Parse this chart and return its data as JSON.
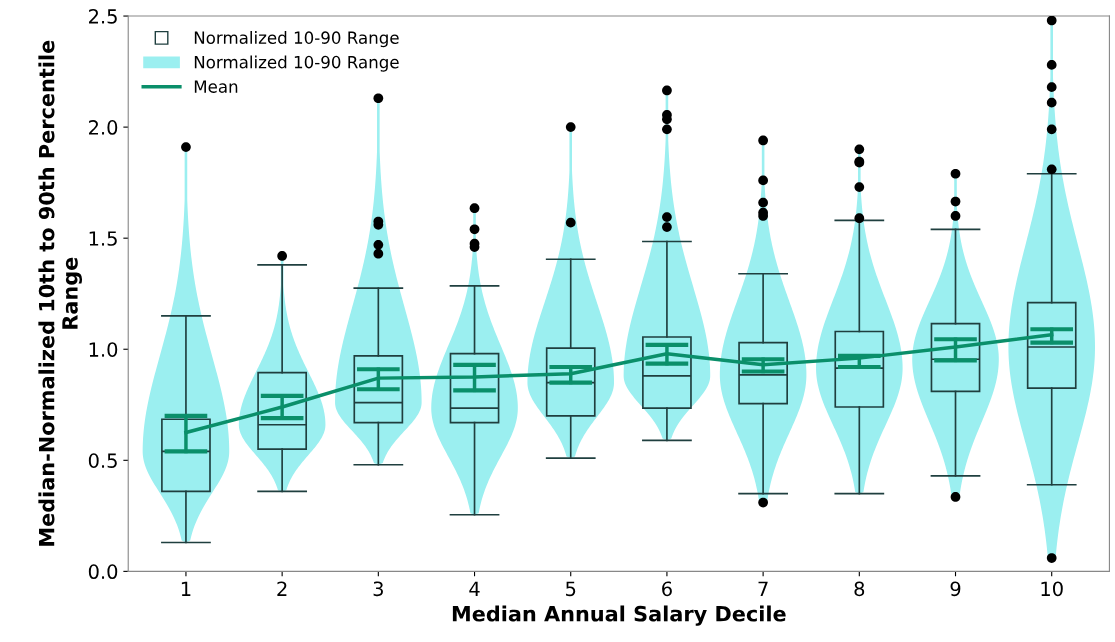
{
  "chart_data": {
    "type": "box",
    "xlabel": "Median Annual Salary Decile",
    "ylabel": "Median-Normalized 10th to 90th Percentile\nRange",
    "categories": [
      "1",
      "2",
      "3",
      "4",
      "5",
      "6",
      "7",
      "8",
      "9",
      "10"
    ],
    "ylim": [
      0,
      2.5
    ],
    "yticks": [
      {
        "value": 0,
        "label": "0.0"
      },
      {
        "value": 0.5,
        "label": "0.5"
      },
      {
        "value": 1.0,
        "label": "1.0"
      },
      {
        "value": 1.5,
        "label": "1.5"
      },
      {
        "value": 2.0,
        "label": "2.0"
      },
      {
        "value": 2.5,
        "label": "2.5"
      }
    ],
    "grid": false,
    "legend": "top left",
    "series": [
      {
        "name": "Normalized 10-90 Range",
        "color": "#1f3f3f",
        "boxes": [
          {
            "low": 0.13,
            "q1": 0.36,
            "median": 0.54,
            "q3": 0.685,
            "high": 1.15,
            "outliers": [
              1.91
            ]
          },
          {
            "low": 0.36,
            "q1": 0.55,
            "median": 0.66,
            "q3": 0.895,
            "high": 1.38,
            "outliers": [
              1.42
            ]
          },
          {
            "low": 0.48,
            "q1": 0.67,
            "median": 0.76,
            "q3": 0.97,
            "high": 1.275,
            "outliers": [
              2.13,
              1.575,
              1.56,
              1.47,
              1.43
            ]
          },
          {
            "low": 0.255,
            "q1": 0.67,
            "median": 0.735,
            "q3": 0.98,
            "high": 1.285,
            "outliers": [
              1.635,
              1.54,
              1.475,
              1.46
            ]
          },
          {
            "low": 0.51,
            "q1": 0.7,
            "median": 0.85,
            "q3": 1.005,
            "high": 1.405,
            "outliers": [
              2.0,
              1.57
            ]
          },
          {
            "low": 0.59,
            "q1": 0.735,
            "median": 0.88,
            "q3": 1.055,
            "high": 1.485,
            "outliers": [
              2.165,
              2.055,
              2.035,
              1.99,
              1.595,
              1.55
            ]
          },
          {
            "low": 0.35,
            "q1": 0.755,
            "median": 0.885,
            "q3": 1.03,
            "high": 1.34,
            "outliers": [
              1.94,
              1.76,
              1.66,
              1.615,
              1.6,
              0.31
            ]
          },
          {
            "low": 0.35,
            "q1": 0.74,
            "median": 0.915,
            "q3": 1.08,
            "high": 1.58,
            "outliers": [
              1.9,
              1.845,
              1.84,
              1.73,
              1.59
            ]
          },
          {
            "low": 0.43,
            "q1": 0.81,
            "median": 0.955,
            "q3": 1.115,
            "high": 1.54,
            "outliers": [
              1.79,
              1.665,
              1.6,
              0.335
            ]
          },
          {
            "low": 0.39,
            "q1": 0.825,
            "median": 1.01,
            "q3": 1.21,
            "high": 1.79,
            "outliers": [
              2.48,
              2.28,
              2.18,
              2.11,
              1.99,
              1.81,
              0.06
            ]
          }
        ]
      },
      {
        "name": "Normalized 10-90 Range",
        "type": "area",
        "color": "#9beff0",
        "values": [
          null,
          null,
          null,
          null,
          null,
          null,
          null,
          null,
          null,
          null
        ]
      },
      {
        "name": "Mean",
        "type": "line",
        "color": "#0a8f6a",
        "values": [
          0.625,
          0.74,
          0.87,
          0.875,
          0.89,
          0.98,
          0.93,
          0.96,
          1.01,
          1.065
        ],
        "errors": [
          [
            0.54,
            0.7
          ],
          [
            0.69,
            0.79
          ],
          [
            0.82,
            0.91
          ],
          [
            0.815,
            0.93
          ],
          [
            0.85,
            0.92
          ],
          [
            0.935,
            1.02
          ],
          [
            0.9,
            0.955
          ],
          [
            0.92,
            0.97
          ],
          [
            0.95,
            1.045
          ],
          [
            1.03,
            1.09
          ]
        ]
      }
    ]
  }
}
